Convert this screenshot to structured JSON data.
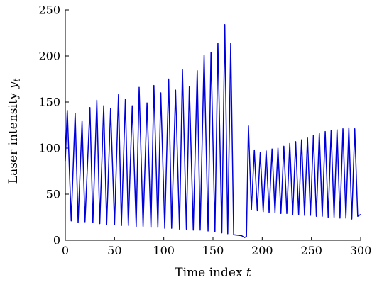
{
  "chart_data": {
    "type": "line",
    "title": "",
    "xlabel": "Time index ",
    "xlabel_var": "t",
    "ylabel": "Laser intensity ",
    "ylabel_var": "y",
    "ylabel_sub": "t",
    "xlim": [
      0,
      300
    ],
    "ylim": [
      0,
      250
    ],
    "xticks": [
      0,
      50,
      100,
      150,
      200,
      250,
      300
    ],
    "yticks": [
      0,
      50,
      100,
      150,
      200,
      250
    ],
    "grid": false,
    "legend": "none",
    "line_color": "#0000dd",
    "series": [
      {
        "name": "",
        "peaks": [
          {
            "t": 2,
            "y": 141
          },
          {
            "t": 10,
            "y": 138
          },
          {
            "t": 17,
            "y": 129
          },
          {
            "t": 25,
            "y": 144
          },
          {
            "t": 32,
            "y": 152
          },
          {
            "t": 39,
            "y": 146
          },
          {
            "t": 46,
            "y": 143
          },
          {
            "t": 54,
            "y": 158
          },
          {
            "t": 61,
            "y": 153
          },
          {
            "t": 68,
            "y": 146
          },
          {
            "t": 75,
            "y": 166
          },
          {
            "t": 83,
            "y": 149
          },
          {
            "t": 90,
            "y": 168
          },
          {
            "t": 97,
            "y": 160
          },
          {
            "t": 105,
            "y": 175
          },
          {
            "t": 112,
            "y": 163
          },
          {
            "t": 119,
            "y": 185
          },
          {
            "t": 126,
            "y": 167
          },
          {
            "t": 134,
            "y": 184
          },
          {
            "t": 141,
            "y": 201
          },
          {
            "t": 148,
            "y": 204
          },
          {
            "t": 155,
            "y": 214
          },
          {
            "t": 162,
            "y": 234
          },
          {
            "t": 168,
            "y": 214
          },
          {
            "t": 186,
            "y": 124
          },
          {
            "t": 192,
            "y": 98
          },
          {
            "t": 198,
            "y": 95
          },
          {
            "t": 204,
            "y": 97
          },
          {
            "t": 210,
            "y": 99
          },
          {
            "t": 216,
            "y": 100
          },
          {
            "t": 222,
            "y": 102
          },
          {
            "t": 228,
            "y": 105
          },
          {
            "t": 234,
            "y": 107
          },
          {
            "t": 240,
            "y": 109
          },
          {
            "t": 246,
            "y": 111
          },
          {
            "t": 252,
            "y": 114
          },
          {
            "t": 258,
            "y": 116
          },
          {
            "t": 264,
            "y": 118
          },
          {
            "t": 270,
            "y": 119
          },
          {
            "t": 276,
            "y": 120
          },
          {
            "t": 282,
            "y": 121
          },
          {
            "t": 288,
            "y": 122
          },
          {
            "t": 294,
            "y": 121
          }
        ],
        "troughs": [
          {
            "t": 0,
            "y": 86
          },
          {
            "t": 6,
            "y": 21
          },
          {
            "t": 13,
            "y": 19
          },
          {
            "t": 20,
            "y": 20
          },
          {
            "t": 28,
            "y": 19
          },
          {
            "t": 35,
            "y": 18
          },
          {
            "t": 42,
            "y": 17
          },
          {
            "t": 50,
            "y": 17
          },
          {
            "t": 57,
            "y": 16
          },
          {
            "t": 64,
            "y": 16
          },
          {
            "t": 72,
            "y": 15
          },
          {
            "t": 79,
            "y": 15
          },
          {
            "t": 87,
            "y": 14
          },
          {
            "t": 94,
            "y": 14
          },
          {
            "t": 101,
            "y": 13
          },
          {
            "t": 108,
            "y": 13
          },
          {
            "t": 116,
            "y": 12
          },
          {
            "t": 123,
            "y": 12
          },
          {
            "t": 130,
            "y": 11
          },
          {
            "t": 137,
            "y": 11
          },
          {
            "t": 145,
            "y": 10
          },
          {
            "t": 152,
            "y": 9
          },
          {
            "t": 159,
            "y": 8
          },
          {
            "t": 165,
            "y": 7
          },
          {
            "t": 171,
            "y": 6
          },
          {
            "t": 179,
            "y": 5
          },
          {
            "t": 182,
            "y": 3
          },
          {
            "t": 184,
            "y": 4
          },
          {
            "t": 189,
            "y": 33
          },
          {
            "t": 195,
            "y": 32
          },
          {
            "t": 201,
            "y": 31
          },
          {
            "t": 207,
            "y": 30
          },
          {
            "t": 213,
            "y": 30
          },
          {
            "t": 219,
            "y": 29
          },
          {
            "t": 225,
            "y": 29
          },
          {
            "t": 231,
            "y": 28
          },
          {
            "t": 237,
            "y": 28
          },
          {
            "t": 243,
            "y": 27
          },
          {
            "t": 249,
            "y": 27
          },
          {
            "t": 255,
            "y": 26
          },
          {
            "t": 261,
            "y": 26
          },
          {
            "t": 267,
            "y": 25
          },
          {
            "t": 273,
            "y": 25
          },
          {
            "t": 279,
            "y": 24
          },
          {
            "t": 285,
            "y": 24
          },
          {
            "t": 291,
            "y": 23
          },
          {
            "t": 297,
            "y": 26
          },
          {
            "t": 300,
            "y": 28
          }
        ]
      }
    ]
  }
}
